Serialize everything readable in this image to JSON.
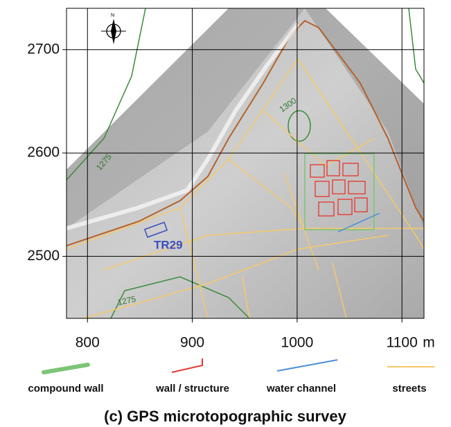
{
  "map": {
    "xlim": [
      780,
      1121
    ],
    "ylim": [
      2440,
      2740
    ],
    "xticks": [
      800,
      900,
      1000,
      1100
    ],
    "x_unit": "m",
    "yticks": [
      2500,
      2600,
      2700
    ],
    "grid": true,
    "contour_labels": [
      "1275",
      "1300",
      "1275"
    ],
    "site_label": "TR29",
    "north_label": "N"
  },
  "legend": [
    {
      "label": "compound wall",
      "color": "#7cc576"
    },
    {
      "label": "wall / structure",
      "color": "#e8322b"
    },
    {
      "label": "water channel",
      "color": "#4a8fd6"
    },
    {
      "label": "streets",
      "color": "#f5c96a"
    }
  ],
  "caption": "(c) GPS microtopographic survey"
}
